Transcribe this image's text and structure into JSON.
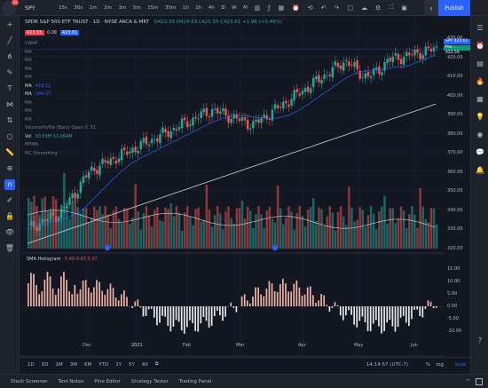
{
  "app": {
    "notification_count": "10"
  },
  "toolbar": {
    "symbol": "SPY",
    "timeframes": [
      "15s",
      "30s",
      "1m",
      "2m",
      "3m",
      "5m",
      "15m",
      "30m",
      "1h",
      "2h",
      "4h",
      "D",
      "W",
      "M"
    ],
    "publish_label": "Publish"
  },
  "chart_header": {
    "title": "SPDR S&P 500 ETF TRUST · 1D · NYSE ARCA & MKT",
    "ohlc": "O422.56 H424.63 L421.55 C423.61 +1.96 (+0.46%)",
    "bid": "423.55",
    "spread": "0.06",
    "ask": "423.61"
  },
  "legend_rows": [
    {
      "label": "VWAP",
      "value": ""
    },
    {
      "label": "MA",
      "value": ""
    },
    {
      "label": "MA",
      "value": ""
    },
    {
      "label": "MA",
      "value": ""
    },
    {
      "label": "MA",
      "value": ""
    },
    {
      "label": "MA",
      "value": "418.12"
    },
    {
      "label": "MA",
      "value": "394.37"
    },
    {
      "label": "MA",
      "value": ""
    },
    {
      "label": "MA",
      "value": ""
    },
    {
      "label": "MA",
      "value": ""
    },
    {
      "label": "VolumeProfile (Bars) Open 0, 51",
      "value": ""
    },
    {
      "label": "Vol",
      "value": "50.59M  53.064M"
    },
    {
      "label": "MFMA",
      "value": ""
    },
    {
      "label": "MC Smoothing",
      "value": ""
    }
  ],
  "price_axis": {
    "labels": [
      "430.00",
      "420.00",
      "410.00",
      "400.00",
      "390.00",
      "380.00",
      "370.00",
      "360.00",
      "350.00",
      "340.00",
      "330.00",
      "320.00"
    ],
    "current_tag": "SPY 423.61",
    "prev_tag": "Pro... 422.59"
  },
  "time_axis": {
    "labels": [
      "Dec",
      "2021",
      "Feb",
      "Mar",
      "Apr",
      "May",
      "Jun"
    ]
  },
  "histogram": {
    "title": "SMA Histogram",
    "values_text": "5.49  0.63  3.37",
    "axis_labels": [
      "15.00",
      "10.00",
      "5.00",
      "0.00",
      "-5.00",
      "-10.00"
    ]
  },
  "range_bar": {
    "ranges": [
      "1D",
      "5D",
      "1M",
      "3M",
      "6M",
      "YTD",
      "1Y",
      "5Y",
      "All"
    ],
    "clock": "14:14:57 (UTC-7)",
    "pct": "%",
    "log": "log",
    "auto": "auto"
  },
  "bottom_panels": [
    "Stock Screener",
    "Text Notes",
    "Pine Editor",
    "Strategy Tester",
    "Trading Panel"
  ],
  "colors": {
    "up": "#26a69a",
    "down": "#ef5350",
    "accent": "#2962ff",
    "bg": "#131722"
  }
}
